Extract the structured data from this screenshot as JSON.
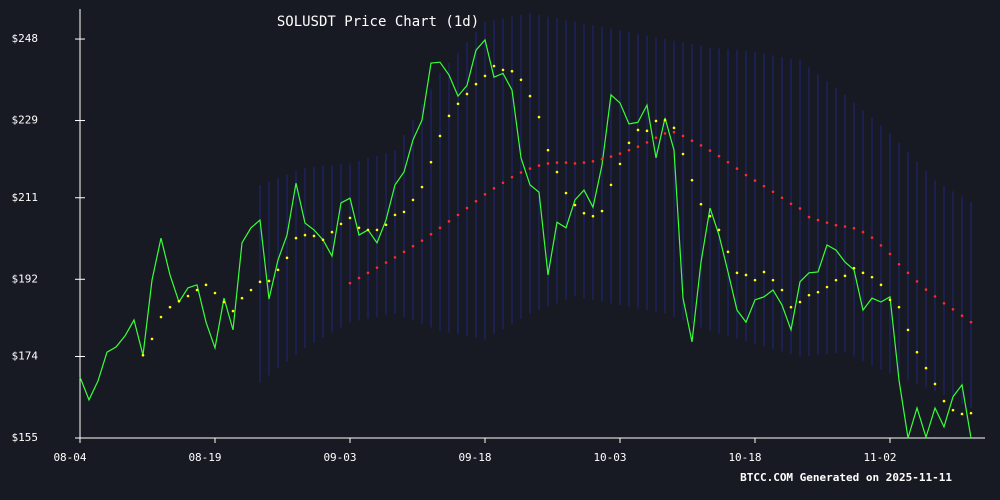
{
  "chart_data": {
    "type": "line",
    "title": "SOLUSDT Price Chart (1d)",
    "footer": "BTCC.COM Generated on 2025-11-11",
    "categories": [
      "08-04",
      null,
      null,
      null,
      null,
      null,
      null,
      null,
      null,
      null,
      null,
      null,
      null,
      null,
      null,
      "08-19",
      null,
      null,
      null,
      null,
      null,
      null,
      null,
      null,
      null,
      null,
      null,
      null,
      null,
      null,
      "09-03",
      null,
      null,
      null,
      null,
      null,
      null,
      null,
      null,
      null,
      null,
      null,
      null,
      null,
      null,
      "09-18",
      null,
      null,
      null,
      null,
      null,
      null,
      null,
      null,
      null,
      null,
      null,
      null,
      null,
      null,
      "10-03",
      null,
      null,
      null,
      null,
      null,
      null,
      null,
      null,
      null,
      null,
      null,
      null,
      null,
      null,
      "10-18",
      null,
      null,
      null,
      null,
      null,
      null,
      null,
      null,
      null,
      null,
      null,
      null,
      null,
      null,
      "11-02",
      null,
      null,
      null,
      null,
      null,
      null,
      null,
      null,
      null
    ],
    "ylim": [
      155,
      255
    ],
    "yticks": [
      {
        "value": 155,
        "label": "$155"
      },
      {
        "value": 174,
        "label": "$174"
      },
      {
        "value": 192,
        "label": "$192"
      },
      {
        "value": 211,
        "label": "$211"
      },
      {
        "value": 229,
        "label": "$229"
      },
      {
        "value": 248,
        "label": "$248"
      }
    ],
    "bands": {
      "color": "#1e2670",
      "upper": [
        null,
        null,
        null,
        null,
        null,
        null,
        null,
        null,
        null,
        null,
        null,
        null,
        null,
        null,
        null,
        null,
        null,
        null,
        null,
        null,
        214,
        214.8,
        215.6,
        216.4,
        217.2,
        218,
        218.2,
        218.4,
        218.6,
        218.8,
        219,
        219.6,
        220.2,
        220.8,
        221.4,
        222,
        225.6,
        229.2,
        232.8,
        236.4,
        240,
        242.4,
        244.8,
        247.2,
        249.6,
        252,
        252.4,
        252.8,
        253.2,
        253.6,
        254,
        253.6,
        253.2,
        252.8,
        252.4,
        252,
        251.6,
        251.2,
        250.8,
        250.4,
        250,
        249.6,
        249.2,
        248.8,
        248.4,
        248,
        247.6,
        247.2,
        246.8,
        246.4,
        246,
        245.8,
        245.6,
        245.4,
        245.2,
        245,
        244.6,
        244.2,
        243.8,
        243.4,
        243,
        241.4,
        239.8,
        238.2,
        236.6,
        235,
        233.2,
        231.4,
        229.6,
        227.8,
        226,
        223.8,
        221.6,
        219.4,
        217.2,
        215,
        213.8,
        212.5,
        211.3,
        210
      ],
      "lower": [
        null,
        null,
        null,
        null,
        null,
        null,
        null,
        null,
        null,
        null,
        null,
        null,
        null,
        null,
        null,
        null,
        null,
        null,
        null,
        null,
        168,
        169.6,
        171.2,
        172.8,
        174.4,
        176,
        177.2,
        178.4,
        179.6,
        180.8,
        182,
        182.4,
        182.8,
        183.2,
        183.6,
        184,
        183.2,
        182.4,
        181.6,
        180.8,
        180,
        179.6,
        179.2,
        178.8,
        178.4,
        178,
        179.2,
        180.4,
        181.6,
        182.8,
        184,
        184.8,
        185.6,
        186.4,
        187.2,
        188,
        187.6,
        187.2,
        186.8,
        186.4,
        186,
        185.6,
        185.2,
        184.8,
        184.4,
        184,
        183.2,
        182.4,
        181.6,
        180.8,
        180,
        179.4,
        178.8,
        178.2,
        177.6,
        177,
        176.4,
        175.8,
        175.2,
        174.6,
        174,
        174.2,
        174.4,
        174.6,
        174.8,
        175,
        174,
        173,
        172,
        171,
        170,
        169.2,
        168.4,
        167.6,
        166.8,
        166,
        165,
        164,
        163,
        162
      ]
    },
    "series": [
      {
        "style": "line",
        "color": "#39ff39",
        "values": [
          169.2,
          163.9,
          168.3,
          175.0,
          176.2,
          178.8,
          182.5,
          174.3,
          191.8,
          201.6,
          193.0,
          186.7,
          190.0,
          190.7,
          182.0,
          176.0,
          187.6,
          180.2,
          200.5,
          204.0,
          205.8,
          187.4,
          196.5,
          202.3,
          214.4,
          205.1,
          203.5,
          201.2,
          197.4,
          209.8,
          210.9,
          202.3,
          203.5,
          200.5,
          205.8,
          214.0,
          217.0,
          224.5,
          229.1,
          242.4,
          242.6,
          239.6,
          234.7,
          237.2,
          245.4,
          247.8,
          239.1,
          240.0,
          236.1,
          220.3,
          214.0,
          212.3,
          193.0,
          205.3,
          204.0,
          210.5,
          212.8,
          208.8,
          218.6,
          235.0,
          233.1,
          228.2,
          228.6,
          232.6,
          220.3,
          229.6,
          222.1,
          187.6,
          177.4,
          196.0,
          208.6,
          202.3,
          193.7,
          184.8,
          182.0,
          187.2,
          187.9,
          189.5,
          186.0,
          180.2,
          191.4,
          193.5,
          193.7,
          200.0,
          198.8,
          196.0,
          194.2,
          184.8,
          187.6,
          186.7,
          187.9,
          168.5,
          155.0,
          162.0,
          155.2,
          162.0,
          157.6,
          164.6,
          167.4,
          155.0
        ]
      },
      {
        "style": "dots",
        "color": "#ffff00",
        "values": [
          null,
          null,
          null,
          null,
          null,
          null,
          null,
          174.3,
          178.1,
          183.2,
          185.5,
          186.9,
          188.1,
          189.5,
          190.7,
          188.8,
          186.7,
          184.6,
          187.6,
          189.5,
          191.4,
          191.6,
          194.2,
          197.0,
          201.6,
          202.3,
          202.1,
          201.2,
          203.0,
          204.9,
          206.3,
          204.0,
          203.5,
          203.5,
          204.7,
          207.0,
          207.7,
          210.5,
          213.5,
          219.3,
          225.4,
          230.1,
          232.9,
          235.2,
          237.5,
          239.4,
          241.7,
          240.8,
          240.5,
          238.5,
          234.7,
          229.8,
          222.1,
          217.0,
          212.1,
          209.3,
          207.4,
          206.7,
          207.9,
          214.0,
          218.9,
          223.8,
          226.8,
          226.6,
          228.9,
          229.1,
          227.3,
          221.2,
          215.1,
          209.5,
          206.7,
          203.5,
          198.4,
          193.5,
          193.0,
          191.8,
          193.7,
          191.8,
          189.5,
          185.5,
          186.7,
          188.3,
          189.0,
          190.2,
          191.8,
          192.8,
          194.6,
          193.5,
          192.5,
          190.7,
          187.2,
          185.5,
          180.2,
          175.0,
          171.3,
          167.6,
          163.6,
          161.5,
          160.6,
          160.8
        ]
      },
      {
        "style": "dots",
        "color": "#ff2a2a",
        "values": [
          null,
          null,
          null,
          null,
          null,
          null,
          null,
          null,
          null,
          null,
          null,
          null,
          null,
          null,
          null,
          null,
          null,
          null,
          null,
          null,
          null,
          null,
          null,
          null,
          null,
          null,
          null,
          null,
          null,
          null,
          191.1,
          192.3,
          193.5,
          194.7,
          195.9,
          197.1,
          198.4,
          199.7,
          201.0,
          202.5,
          204.0,
          205.5,
          207.0,
          208.6,
          210.2,
          211.8,
          213.2,
          214.5,
          215.8,
          216.9,
          217.8,
          218.5,
          219.0,
          219.2,
          219.2,
          219.0,
          219.2,
          219.5,
          220.0,
          220.6,
          221.3,
          222.1,
          222.9,
          223.9,
          225.0,
          226.0,
          226.3,
          225.4,
          224.3,
          223.2,
          222.0,
          220.7,
          219.3,
          217.8,
          216.3,
          215.0,
          213.7,
          212.4,
          211.0,
          209.6,
          208.5,
          206.5,
          205.8,
          205.2,
          204.6,
          204.3,
          203.9,
          203.0,
          201.7,
          199.9,
          197.9,
          195.5,
          193.5,
          191.5,
          189.6,
          188.0,
          186.4,
          185.0,
          183.5,
          182.0
        ]
      }
    ]
  }
}
